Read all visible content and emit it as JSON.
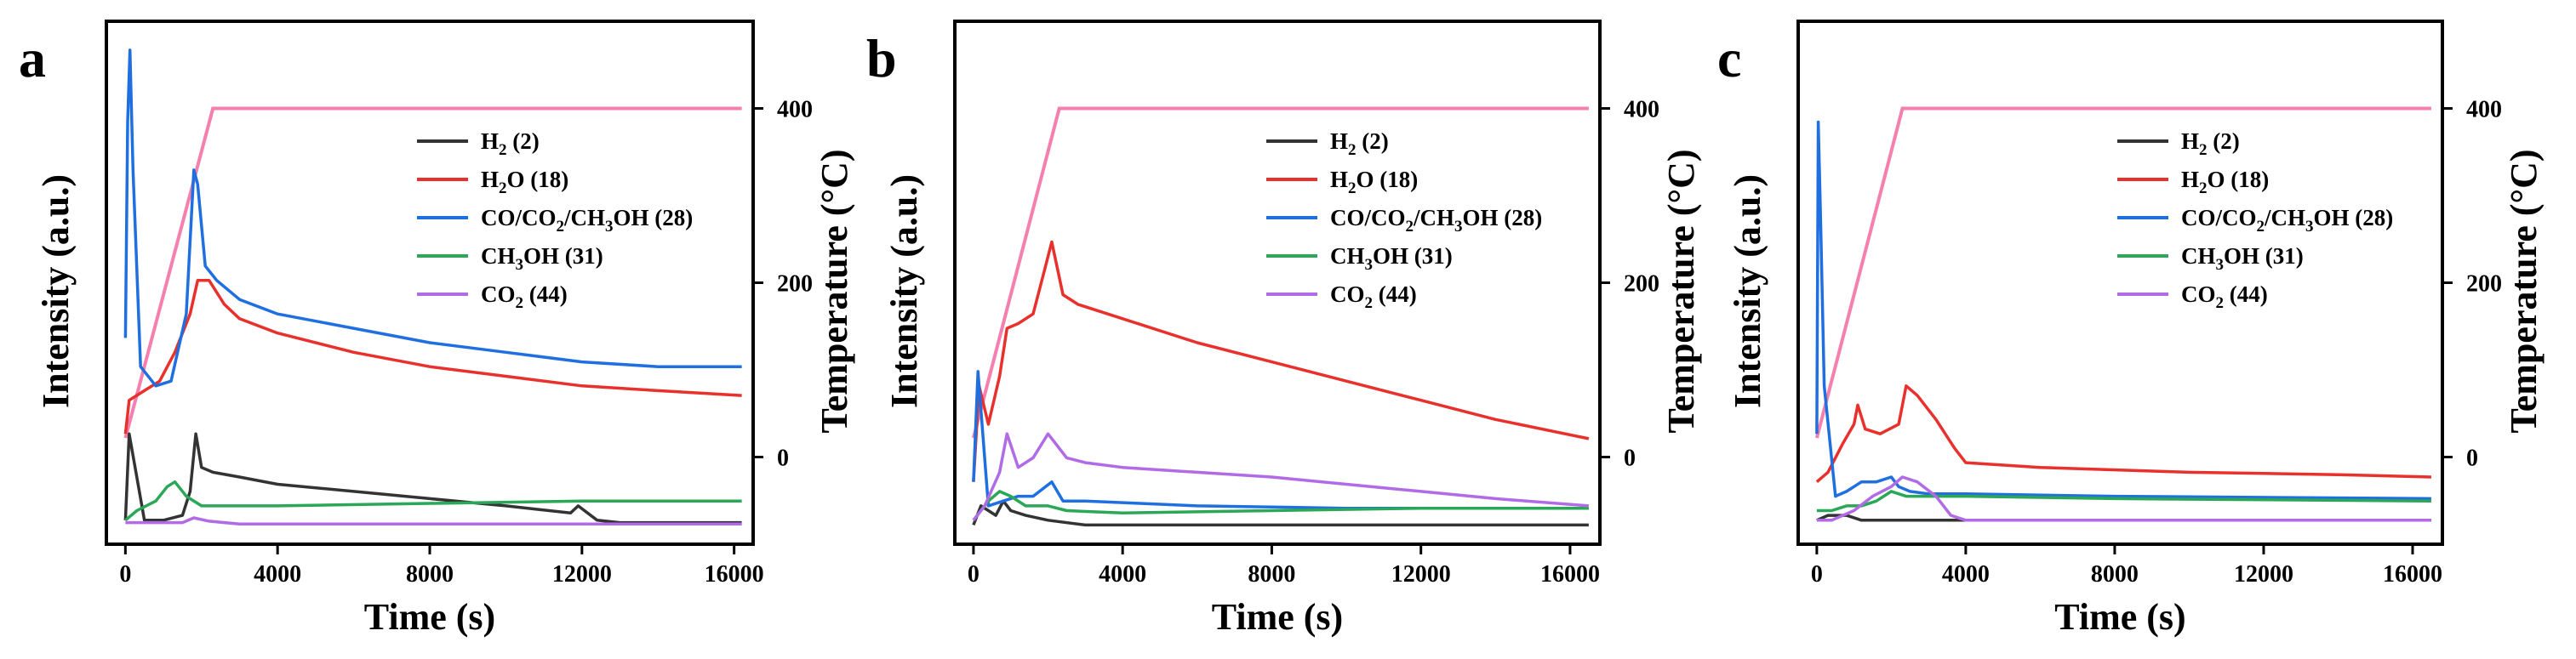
{
  "colors": {
    "H2": "#333333",
    "H2O": "#e8302c",
    "CO": "#1f6fe0",
    "CH3OH": "#2aa857",
    "CO2": "#b16be6",
    "temperature": "#f57fae"
  },
  "chart_data": [
    {
      "type": "line",
      "panel": "a",
      "xlabel": "Time (s)",
      "ylabel": "Intensity (a.u.)",
      "y2label": "Temperature (°C)",
      "xlim": [
        -500,
        16500
      ],
      "xticks": [
        0,
        4000,
        8000,
        12000,
        16000
      ],
      "tick_labels": [
        "0",
        "4000",
        "8000",
        "12000",
        "16000"
      ],
      "intensity_lim": [
        -0.03,
        1.06
      ],
      "temp_lim": [
        -100,
        500
      ],
      "temp_ticks": [
        0,
        200,
        400
      ],
      "temp_tick_labels": [
        "0",
        "200",
        "400"
      ],
      "legend": [
        {
          "key": "H2",
          "parts": [
            "H",
            "2",
            " (2)"
          ]
        },
        {
          "key": "H2O",
          "parts": [
            "H",
            "2",
            "O (18)"
          ]
        },
        {
          "key": "CO",
          "parts": [
            "CO/CO",
            "2",
            "/CH",
            "3",
            "OH (28)"
          ]
        },
        {
          "key": "CH3OH",
          "parts": [
            "CH",
            "3",
            "OH (31)"
          ]
        },
        {
          "key": "CO2",
          "parts": [
            "CO",
            "2",
            " (44)"
          ]
        }
      ],
      "temperature": {
        "x": [
          0,
          2300,
          16200
        ],
        "y": [
          22,
          400,
          400
        ]
      },
      "series": [
        {
          "key": "H2",
          "name": "H2 (2)",
          "x": [
            0,
            100,
            500,
            1000,
            1500,
            1700,
            1850,
            2000,
            2300,
            3000,
            4000,
            6000,
            8000,
            10000,
            11700,
            11900,
            12400,
            13000,
            16200
          ],
          "y": [
            0.02,
            0.2,
            0.02,
            0.02,
            0.03,
            0.08,
            0.2,
            0.13,
            0.12,
            0.11,
            0.095,
            0.08,
            0.065,
            0.05,
            0.035,
            0.05,
            0.02,
            0.015,
            0.015
          ]
        },
        {
          "key": "H2O",
          "name": "H2O (18)",
          "x": [
            0,
            100,
            500,
            900,
            1300,
            1700,
            1900,
            2200,
            2600,
            3000,
            4000,
            6000,
            8000,
            10000,
            12000,
            14000,
            16200
          ],
          "y": [
            0.2,
            0.27,
            0.29,
            0.31,
            0.37,
            0.45,
            0.52,
            0.52,
            0.47,
            0.44,
            0.41,
            0.37,
            0.34,
            0.32,
            0.3,
            0.29,
            0.28
          ]
        },
        {
          "key": "CO",
          "name": "CO/CO2/CH3OH (28)",
          "x": [
            0,
            60,
            120,
            200,
            400,
            800,
            1200,
            1600,
            1800,
            1900,
            2100,
            2400,
            3000,
            4000,
            6000,
            8000,
            10000,
            12000,
            14000,
            16200
          ],
          "y": [
            0.4,
            0.85,
            1.0,
            0.75,
            0.34,
            0.3,
            0.31,
            0.45,
            0.75,
            0.72,
            0.55,
            0.52,
            0.48,
            0.45,
            0.42,
            0.39,
            0.37,
            0.35,
            0.34,
            0.34
          ]
        },
        {
          "key": "CH3OH",
          "name": "CH3OH (31)",
          "x": [
            0,
            300,
            800,
            1100,
            1300,
            1600,
            2000,
            2500,
            4000,
            8000,
            12000,
            16200
          ],
          "y": [
            0.02,
            0.04,
            0.06,
            0.09,
            0.1,
            0.07,
            0.05,
            0.05,
            0.05,
            0.055,
            0.06,
            0.06
          ]
        },
        {
          "key": "CO2",
          "name": "CO2 (44)",
          "x": [
            0,
            1500,
            1800,
            2200,
            3000,
            16200
          ],
          "y": [
            0.015,
            0.015,
            0.025,
            0.018,
            0.012,
            0.012
          ]
        }
      ]
    },
    {
      "type": "line",
      "panel": "b",
      "xlabel": "Time (s)",
      "ylabel": "Intensity (a.u.)",
      "y2label": "Temperature (°C)",
      "xlim": [
        -500,
        16800
      ],
      "xticks": [
        0,
        4000,
        8000,
        12000,
        16000
      ],
      "tick_labels": [
        "0",
        "4000",
        "8000",
        "12000",
        "16000"
      ],
      "intensity_lim": [
        -0.03,
        1.06
      ],
      "temp_lim": [
        -100,
        500
      ],
      "temp_ticks": [
        0,
        200,
        400
      ],
      "temp_tick_labels": [
        "0",
        "200",
        "400"
      ],
      "legend": [
        {
          "key": "H2",
          "parts": [
            "H",
            "2",
            " (2)"
          ]
        },
        {
          "key": "H2O",
          "parts": [
            "H",
            "2",
            "O (18)"
          ]
        },
        {
          "key": "CO",
          "parts": [
            "CO/CO",
            "2",
            "/CH",
            "3",
            "OH (28)"
          ]
        },
        {
          "key": "CH3OH",
          "parts": [
            "CH",
            "3",
            "OH (31)"
          ]
        },
        {
          "key": "CO2",
          "parts": [
            "CO",
            "2",
            " (44)"
          ]
        }
      ],
      "temperature": {
        "x": [
          0,
          2300,
          16500
        ],
        "y": [
          22,
          400,
          400
        ]
      },
      "series": [
        {
          "key": "H2",
          "name": "H2 (2)",
          "x": [
            0,
            200,
            600,
            800,
            1000,
            1400,
            2000,
            3000,
            6000,
            10000,
            16500
          ],
          "y": [
            0.01,
            0.05,
            0.03,
            0.06,
            0.04,
            0.03,
            0.02,
            0.01,
            0.01,
            0.01,
            0.01
          ]
        },
        {
          "key": "H2O",
          "name": "H2O (18)",
          "x": [
            0,
            150,
            400,
            700,
            900,
            1200,
            1600,
            1900,
            2100,
            2400,
            2800,
            4000,
            6000,
            8000,
            10000,
            12000,
            14000,
            16500
          ],
          "y": [
            0.1,
            0.3,
            0.22,
            0.32,
            0.42,
            0.43,
            0.45,
            0.54,
            0.6,
            0.49,
            0.47,
            0.44,
            0.39,
            0.35,
            0.31,
            0.27,
            0.23,
            0.19
          ]
        },
        {
          "key": "CO",
          "name": "CO/CO2/CH3OH (28)",
          "x": [
            0,
            120,
            400,
            800,
            1200,
            1600,
            2100,
            2400,
            3000,
            6000,
            10000,
            16500
          ],
          "y": [
            0.1,
            0.33,
            0.05,
            0.06,
            0.07,
            0.07,
            0.1,
            0.06,
            0.06,
            0.05,
            0.045,
            0.045
          ]
        },
        {
          "key": "CH3OH",
          "name": "CH3OH (31)",
          "x": [
            0,
            400,
            700,
            1000,
            1400,
            2000,
            2500,
            4000,
            8000,
            12000,
            16500
          ],
          "y": [
            0.02,
            0.06,
            0.08,
            0.07,
            0.05,
            0.05,
            0.04,
            0.035,
            0.04,
            0.045,
            0.045
          ]
        },
        {
          "key": "CO2",
          "name": "CO2 (44)",
          "x": [
            0,
            300,
            700,
            900,
            1200,
            1600,
            2000,
            2200,
            2500,
            3000,
            4000,
            6000,
            8000,
            10000,
            12000,
            14000,
            16500
          ],
          "y": [
            0.02,
            0.05,
            0.12,
            0.2,
            0.13,
            0.15,
            0.2,
            0.18,
            0.15,
            0.14,
            0.13,
            0.12,
            0.11,
            0.095,
            0.08,
            0.065,
            0.05
          ]
        }
      ]
    },
    {
      "type": "line",
      "panel": "c",
      "xlabel": "Time (s)",
      "ylabel": "Intensity (a.u.)",
      "y2label": "Temperature (°C)",
      "xlim": [
        -500,
        16800
      ],
      "xticks": [
        0,
        4000,
        8000,
        12000,
        16000
      ],
      "tick_labels": [
        "0",
        "4000",
        "8000",
        "12000",
        "16000"
      ],
      "intensity_lim": [
        -0.03,
        1.06
      ],
      "temp_lim": [
        -100,
        500
      ],
      "temp_ticks": [
        0,
        200,
        400
      ],
      "temp_tick_labels": [
        "0",
        "200",
        "400"
      ],
      "legend": [
        {
          "key": "H2",
          "parts": [
            "H",
            "2",
            " (2)"
          ]
        },
        {
          "key": "H2O",
          "parts": [
            "H",
            "2",
            "O (18)"
          ]
        },
        {
          "key": "CO",
          "parts": [
            "CO/CO",
            "2",
            "/CH",
            "3",
            "OH (28)"
          ]
        },
        {
          "key": "CH3OH",
          "parts": [
            "CH",
            "3",
            "OH (31)"
          ]
        },
        {
          "key": "CO2",
          "parts": [
            "CO",
            "2",
            " (44)"
          ]
        }
      ],
      "temperature": {
        "x": [
          0,
          2300,
          16500
        ],
        "y": [
          22,
          400,
          400
        ]
      },
      "series": [
        {
          "key": "H2",
          "name": "H2 (2)",
          "x": [
            0,
            300,
            800,
            1200,
            2000,
            4000,
            16500
          ],
          "y": [
            0.02,
            0.03,
            0.03,
            0.02,
            0.02,
            0.02,
            0.02
          ]
        },
        {
          "key": "H2O",
          "name": "H2O (18)",
          "x": [
            0,
            300,
            700,
            1000,
            1100,
            1300,
            1700,
            2200,
            2400,
            2700,
            3200,
            3700,
            4000,
            6000,
            10000,
            14000,
            16500
          ],
          "y": [
            0.1,
            0.12,
            0.18,
            0.22,
            0.26,
            0.21,
            0.2,
            0.22,
            0.3,
            0.28,
            0.23,
            0.17,
            0.14,
            0.13,
            0.12,
            0.115,
            0.11
          ]
        },
        {
          "key": "CO",
          "name": "CO/CO2/CH3OH (28)",
          "x": [
            0,
            40,
            100,
            200,
            500,
            800,
            1200,
            1600,
            2000,
            2200,
            2500,
            3000,
            4000,
            8000,
            16500
          ],
          "y": [
            0.2,
            0.85,
            0.65,
            0.3,
            0.07,
            0.08,
            0.1,
            0.1,
            0.11,
            0.09,
            0.08,
            0.075,
            0.075,
            0.07,
            0.065
          ]
        },
        {
          "key": "CH3OH",
          "name": "CH3OH (31)",
          "x": [
            0,
            400,
            800,
            1200,
            1600,
            2000,
            2400,
            3000,
            4000,
            8000,
            16500
          ],
          "y": [
            0.04,
            0.04,
            0.05,
            0.05,
            0.06,
            0.08,
            0.07,
            0.07,
            0.07,
            0.065,
            0.06
          ]
        },
        {
          "key": "CO2",
          "name": "CO2 (44)",
          "x": [
            0,
            400,
            1000,
            1500,
            2000,
            2300,
            2700,
            3200,
            3600,
            4000,
            16500
          ],
          "y": [
            0.02,
            0.02,
            0.04,
            0.07,
            0.09,
            0.11,
            0.1,
            0.07,
            0.03,
            0.02,
            0.02
          ]
        }
      ]
    }
  ]
}
